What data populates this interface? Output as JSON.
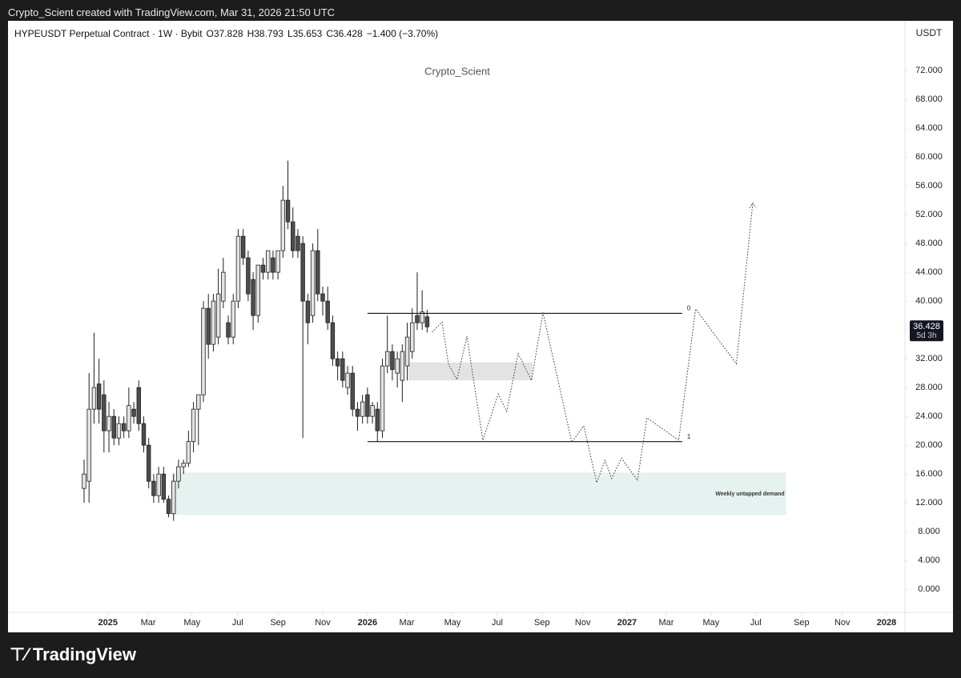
{
  "top_bar": "Crypto_Scient created with TradingView.com, Mar 31, 2026 21:50 UTC",
  "brand": "TradingView",
  "chart_data": {
    "type": "candlestick",
    "symbol": "HYPEUSDT Perpetual Contract · 1W · Bybit",
    "header_stats": [
      "O37.828",
      "H38.793",
      "L35.653",
      "C36.428",
      "−1.400 (−3.70%)"
    ],
    "currency": "USDT",
    "watermark": "Crypto_Scient",
    "up_color": "#e4e4e4",
    "down_color": "#4d4d4d",
    "outline_color": "#1f1f1f",
    "open": [
      14,
      15,
      25,
      28.5,
      27,
      22,
      24,
      21,
      23,
      22,
      25,
      28,
      23,
      20,
      15,
      13,
      16,
      12.5,
      10.5,
      15,
      17,
      17.5,
      20.5,
      25,
      27,
      39,
      34,
      35,
      40,
      37,
      35,
      40,
      49,
      46,
      43,
      38,
      45,
      44,
      46,
      44,
      47,
      54,
      51,
      49,
      48,
      40,
      38,
      47,
      41,
      40,
      37,
      32,
      32,
      28,
      30,
      25,
      24,
      27,
      24,
      25,
      22,
      31,
      33,
      30,
      29,
      31,
      33,
      38,
      37,
      37.828
    ],
    "high": [
      18,
      30,
      35.6,
      32,
      29,
      26,
      25,
      24,
      24,
      28,
      26,
      29,
      24,
      21,
      16,
      17,
      17,
      13,
      16,
      18,
      18,
      22,
      26,
      27,
      40,
      41,
      41,
      44.5,
      46,
      38,
      41,
      50,
      50,
      47,
      44,
      45,
      46,
      47,
      47,
      47,
      56,
      59.5,
      53,
      50,
      49,
      41,
      48,
      50,
      42,
      42,
      38,
      33,
      33,
      31,
      31,
      26,
      27,
      28,
      26,
      26,
      32,
      38,
      34,
      33,
      34,
      37,
      39,
      44,
      41.5,
      38.793
    ],
    "low": [
      12,
      12,
      23,
      23,
      19,
      19,
      20,
      20,
      21,
      21,
      23,
      22,
      19,
      14,
      12,
      12,
      12,
      10,
      9.5,
      14,
      16,
      17,
      19,
      20,
      26,
      32,
      33,
      34,
      39,
      34,
      34,
      39,
      45,
      40,
      36,
      37,
      43,
      43,
      43,
      43,
      46,
      50,
      46,
      46,
      21,
      34,
      37,
      40,
      38,
      36,
      31,
      29,
      28,
      27,
      24,
      22,
      23,
      23,
      23,
      20.5,
      21,
      30,
      29,
      28,
      26,
      29,
      32,
      36,
      36,
      35.653
    ],
    "close": [
      16,
      25,
      28,
      25,
      22,
      24,
      21,
      23,
      22,
      25.5,
      24,
      23,
      20,
      15,
      13,
      16,
      12.5,
      10.5,
      15,
      17,
      17.5,
      20.5,
      25,
      27,
      39,
      34,
      40,
      41,
      44,
      35,
      40,
      49,
      46,
      41,
      38,
      45,
      44,
      47,
      44,
      47,
      54,
      51,
      47,
      47,
      40,
      37,
      47,
      41,
      40,
      37,
      32,
      31,
      29,
      30,
      25,
      24,
      26,
      24,
      25.5,
      22,
      31,
      33,
      30.5,
      32,
      33,
      35,
      37,
      37,
      38.5,
      36.428
    ],
    "last_price": {
      "value": 36.428,
      "label": "36.428"
    },
    "countdown": "5d 3h",
    "levels": [
      {
        "value": 38.3,
        "label": "0",
        "x": [
          57,
          120.3
        ]
      },
      {
        "value": 20.5,
        "label": "1",
        "x": [
          57,
          120.3
        ]
      }
    ],
    "zones": [
      {
        "ylim": [
          29,
          31.5
        ],
        "x": [
          65.2,
          90.2
        ],
        "color": "#e3e3e3"
      },
      {
        "ylim": [
          10.3,
          16.2
        ],
        "x": [
          17.7,
          141.2
        ],
        "color": "#e6f2ef",
        "label": "Weekly untapped demand"
      }
    ],
    "projection": {
      "x": [
        70,
        72,
        73.3,
        75,
        77,
        80.2,
        83.3,
        85,
        87.3,
        90,
        92.3,
        98.1,
        100.5,
        103.1,
        104.8,
        106.1,
        108.1,
        111.3,
        113.2,
        119.6,
        123,
        131.2,
        134.5
      ],
      "values": [
        35.7,
        37.1,
        31.2,
        29.1,
        35.1,
        20.7,
        27.1,
        24.7,
        32.7,
        29,
        38.4,
        20.4,
        22.7,
        14.8,
        17.9,
        15.4,
        18.2,
        15.1,
        23.8,
        20.7,
        38.9,
        31.3,
        53.6
      ]
    },
    "xlim": [
      -15.3,
      165.1
    ],
    "xticks": [
      {
        "value": 4.8,
        "label": "2025"
      },
      {
        "value": 12.9,
        "label": "Mar"
      },
      {
        "value": 21.7,
        "label": "May"
      },
      {
        "value": 30.9,
        "label": "Jul"
      },
      {
        "value": 39,
        "label": "Sep"
      },
      {
        "value": 48,
        "label": "Nov"
      },
      {
        "value": 57,
        "label": "2026"
      },
      {
        "value": 64.9,
        "label": "Mar"
      },
      {
        "value": 74.1,
        "label": "May"
      },
      {
        "value": 83.1,
        "label": "Jul"
      },
      {
        "value": 92.1,
        "label": "Sep"
      },
      {
        "value": 100.3,
        "label": "Nov"
      },
      {
        "value": 109.2,
        "label": "2027"
      },
      {
        "value": 117.1,
        "label": "Mar"
      },
      {
        "value": 126.1,
        "label": "May"
      },
      {
        "value": 135.1,
        "label": "Jul"
      },
      {
        "value": 144.3,
        "label": "Sep"
      },
      {
        "value": 152.5,
        "label": "Nov"
      },
      {
        "value": 161.4,
        "label": "2028"
      }
    ],
    "ylim": [
      -3.2,
      78.9
    ],
    "yticks": [
      {
        "value": 0,
        "label": "0.000"
      },
      {
        "value": 4,
        "label": "4.000"
      },
      {
        "value": 8,
        "label": "8.000"
      },
      {
        "value": 12,
        "label": "12.000"
      },
      {
        "value": 16,
        "label": "16.000"
      },
      {
        "value": 20,
        "label": "20.000"
      },
      {
        "value": 24,
        "label": "24.000"
      },
      {
        "value": 28,
        "label": "28.000"
      },
      {
        "value": 32,
        "label": "32.000"
      },
      {
        "value": 36,
        "label": "36.000"
      },
      {
        "value": 40,
        "label": "40.000"
      },
      {
        "value": 44,
        "label": "44.000"
      },
      {
        "value": 48,
        "label": "48.000"
      },
      {
        "value": 52,
        "label": "52.000"
      },
      {
        "value": 56,
        "label": "56.000"
      },
      {
        "value": 60,
        "label": "60.000"
      },
      {
        "value": 64,
        "label": "64.000"
      },
      {
        "value": 68,
        "label": "68.000"
      },
      {
        "value": 72,
        "label": "72.000"
      }
    ]
  }
}
